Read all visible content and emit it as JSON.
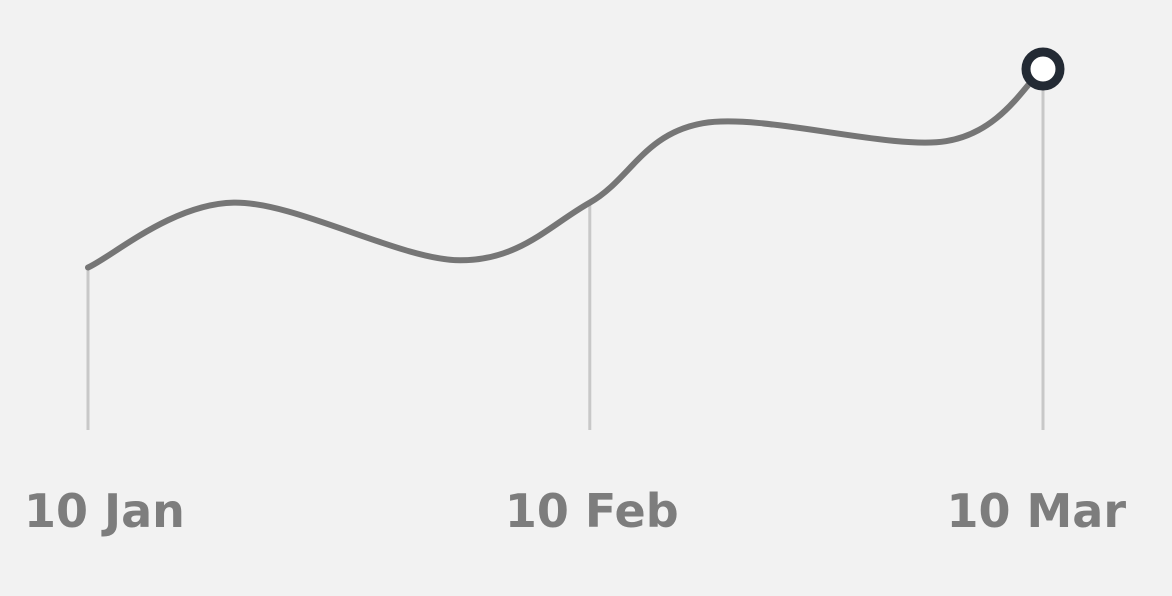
{
  "chart_data": {
    "type": "line",
    "title": "",
    "xlabel": "",
    "ylabel": "",
    "x_ticks": [
      "10 Jan",
      "10 Feb",
      "10 Mar"
    ],
    "points": [
      {
        "x": "10 Jan",
        "y": 0.45
      },
      {
        "x": "19 Jan",
        "y": 0.63
      },
      {
        "x": "2 Feb",
        "y": 0.47
      },
      {
        "x": "10 Feb",
        "y": 0.63
      },
      {
        "x": "17 Feb",
        "y": 0.85
      },
      {
        "x": "4 Mar",
        "y": 0.8
      },
      {
        "x": "10 Mar",
        "y": 1.0
      }
    ],
    "ylim": [
      0,
      1.1
    ],
    "grid": false,
    "highlight": {
      "x": "10 Mar",
      "marker": "hollow circle"
    },
    "colors": {
      "line": "#767676",
      "marker": "#232a34",
      "tick_line": "#c8c8c8",
      "label": "#7d7d7d",
      "background": "#f2f2f2"
    }
  }
}
